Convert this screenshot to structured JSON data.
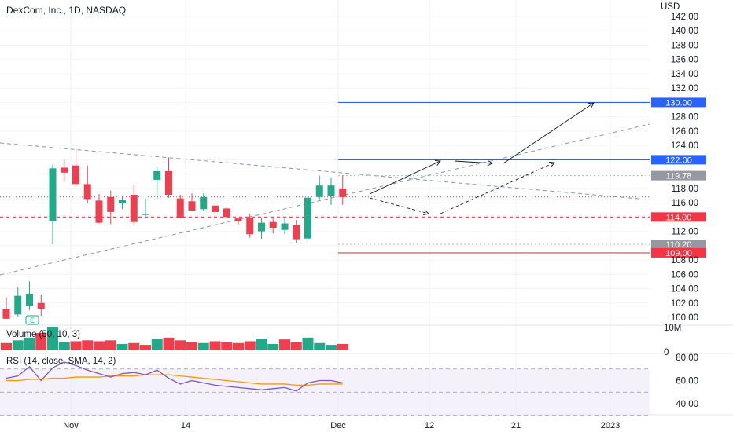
{
  "header": {
    "title": "DexCom, Inc., 1D, NASDAQ",
    "currency": "USD"
  },
  "volume_panel": {
    "title": "Volume (50, 10, 3)",
    "scale_labels": [
      "10M",
      "0"
    ]
  },
  "rsi_panel": {
    "title": "RSI (14, close, SMA, 14, 2)",
    "scale_labels": [
      "80.00",
      "60.00",
      "40.00"
    ]
  },
  "colors": {
    "up": "#22a98a",
    "down": "#ee3f4f",
    "blue": "#2962ff",
    "red": "#f23645",
    "gray_badge": "#9598a1",
    "rsi": "#7e57c2",
    "rsi_ma": "#ff9800"
  },
  "chart_data": {
    "type": "candlestick",
    "price_axis": {
      "ylim": [
        98.5,
        143.5
      ],
      "ticks": [
        "142.00",
        "140.00",
        "138.00",
        "136.00",
        "134.00",
        "132.00",
        "128.00",
        "126.00",
        "124.00",
        "118.00",
        "116.00",
        "112.00",
        "108.00",
        "106.00",
        "104.00",
        "102.00",
        "100.00"
      ]
    },
    "x_ticks": [
      "Nov",
      "14",
      "Dec",
      "12",
      "21",
      "2023"
    ],
    "candles": [
      {
        "o": 101.1,
        "h": 102.8,
        "l": 99.8,
        "c": 99.8
      },
      {
        "o": 100.4,
        "h": 104.2,
        "l": 100.1,
        "c": 103.0
      },
      {
        "o": 101.6,
        "h": 105.0,
        "l": 101.0,
        "c": 103.3
      },
      {
        "o": 102.0,
        "h": 103.2,
        "l": 100.2,
        "c": 101.2
      },
      {
        "o": 113.4,
        "h": 121.3,
        "l": 110.2,
        "c": 120.8
      },
      {
        "o": 120.9,
        "h": 122.0,
        "l": 118.9,
        "c": 120.2
      },
      {
        "o": 121.2,
        "h": 123.5,
        "l": 118.2,
        "c": 118.6
      },
      {
        "o": 118.6,
        "h": 121.2,
        "l": 115.9,
        "c": 116.5
      },
      {
        "o": 116.3,
        "h": 117.2,
        "l": 113.1,
        "c": 113.2
      },
      {
        "o": 116.8,
        "h": 117.7,
        "l": 113.0,
        "c": 114.7
      },
      {
        "o": 115.9,
        "h": 116.9,
        "l": 115.1,
        "c": 116.4
      },
      {
        "o": 117.1,
        "h": 118.5,
        "l": 113.0,
        "c": 113.3
      },
      {
        "o": 114.4,
        "h": 116.6,
        "l": 114.1,
        "c": 114.4
      },
      {
        "o": 119.2,
        "h": 121.0,
        "l": 116.5,
        "c": 120.4
      },
      {
        "o": 120.4,
        "h": 122.3,
        "l": 116.7,
        "c": 117.1
      },
      {
        "o": 116.6,
        "h": 117.1,
        "l": 113.9,
        "c": 113.9
      },
      {
        "o": 116.2,
        "h": 117.3,
        "l": 115.1,
        "c": 114.9
      },
      {
        "o": 115.1,
        "h": 117.3,
        "l": 114.8,
        "c": 116.8
      },
      {
        "o": 115.6,
        "h": 116.0,
        "l": 114.0,
        "c": 114.7
      },
      {
        "o": 115.2,
        "h": 115.3,
        "l": 114.1,
        "c": 114.0
      },
      {
        "o": 113.8,
        "h": 113.9,
        "l": 113.0,
        "c": 113.4
      },
      {
        "o": 113.9,
        "h": 114.5,
        "l": 111.1,
        "c": 111.6
      },
      {
        "o": 112.0,
        "h": 113.9,
        "l": 111.0,
        "c": 113.2
      },
      {
        "o": 113.3,
        "h": 113.8,
        "l": 111.7,
        "c": 112.5
      },
      {
        "o": 112.2,
        "h": 113.9,
        "l": 111.6,
        "c": 113.1
      },
      {
        "o": 112.9,
        "h": 113.6,
        "l": 110.4,
        "c": 110.9
      },
      {
        "o": 111.0,
        "h": 116.7,
        "l": 110.4,
        "c": 116.7
      },
      {
        "o": 116.8,
        "h": 119.8,
        "l": 116.5,
        "c": 118.4
      },
      {
        "o": 116.9,
        "h": 119.5,
        "l": 115.7,
        "c": 118.4
      },
      {
        "o": 118.0,
        "h": 119.8,
        "l": 115.7,
        "c": 116.8
      }
    ],
    "volume": [
      {
        "v": 0.8,
        "up": false
      },
      {
        "v": 1.1,
        "up": true
      },
      {
        "v": 1.4,
        "up": true
      },
      {
        "v": 1.9,
        "up": false
      },
      {
        "v": 2.6,
        "up": true
      },
      {
        "v": 0.9,
        "up": true
      },
      {
        "v": 1.0,
        "up": false
      },
      {
        "v": 1.1,
        "up": false
      },
      {
        "v": 1.0,
        "up": false
      },
      {
        "v": 1.1,
        "up": false
      },
      {
        "v": 0.7,
        "up": true
      },
      {
        "v": 0.8,
        "up": false
      },
      {
        "v": 0.6,
        "up": false
      },
      {
        "v": 1.3,
        "up": true
      },
      {
        "v": 1.4,
        "up": false
      },
      {
        "v": 1.1,
        "up": false
      },
      {
        "v": 0.9,
        "up": false
      },
      {
        "v": 0.8,
        "up": true
      },
      {
        "v": 1.0,
        "up": false
      },
      {
        "v": 0.9,
        "up": false
      },
      {
        "v": 0.8,
        "up": false
      },
      {
        "v": 1.0,
        "up": false
      },
      {
        "v": 1.3,
        "up": true
      },
      {
        "v": 0.7,
        "up": true
      },
      {
        "v": 1.2,
        "up": false
      },
      {
        "v": 0.9,
        "up": false
      },
      {
        "v": 1.4,
        "up": true
      },
      {
        "v": 0.8,
        "up": true
      },
      {
        "v": 0.6,
        "up": true
      },
      {
        "v": 0.7,
        "up": false
      }
    ],
    "rsi": [
      62,
      64,
      72,
      60,
      71,
      76,
      73,
      69,
      66,
      63,
      66,
      67,
      65,
      69,
      62,
      57,
      60,
      58,
      56,
      55,
      54,
      53,
      52,
      53,
      54,
      51,
      58,
      60,
      60,
      58
    ],
    "rsi_ma": [
      60,
      60,
      61,
      61,
      62,
      62,
      63,
      63,
      63,
      64,
      64,
      64,
      65,
      65,
      65,
      64,
      63,
      62,
      61,
      60,
      59,
      58,
      57,
      57,
      57,
      56,
      56,
      57,
      57,
      57
    ],
    "horizontal_levels": [
      {
        "value": 130.0,
        "label": "130.00",
        "color": "blue"
      },
      {
        "value": 122.0,
        "label": "122.00",
        "color": "blue"
      },
      {
        "value": 119.78,
        "label": "119.78",
        "color": "gray_badge"
      },
      {
        "value": 114.0,
        "label": "114.00",
        "color": "red"
      },
      {
        "value": 110.2,
        "label": "110.20",
        "color": "gray_badge"
      },
      {
        "value": 109.0,
        "label": "109.00",
        "color": "red"
      }
    ],
    "annotations": [
      "E"
    ]
  }
}
